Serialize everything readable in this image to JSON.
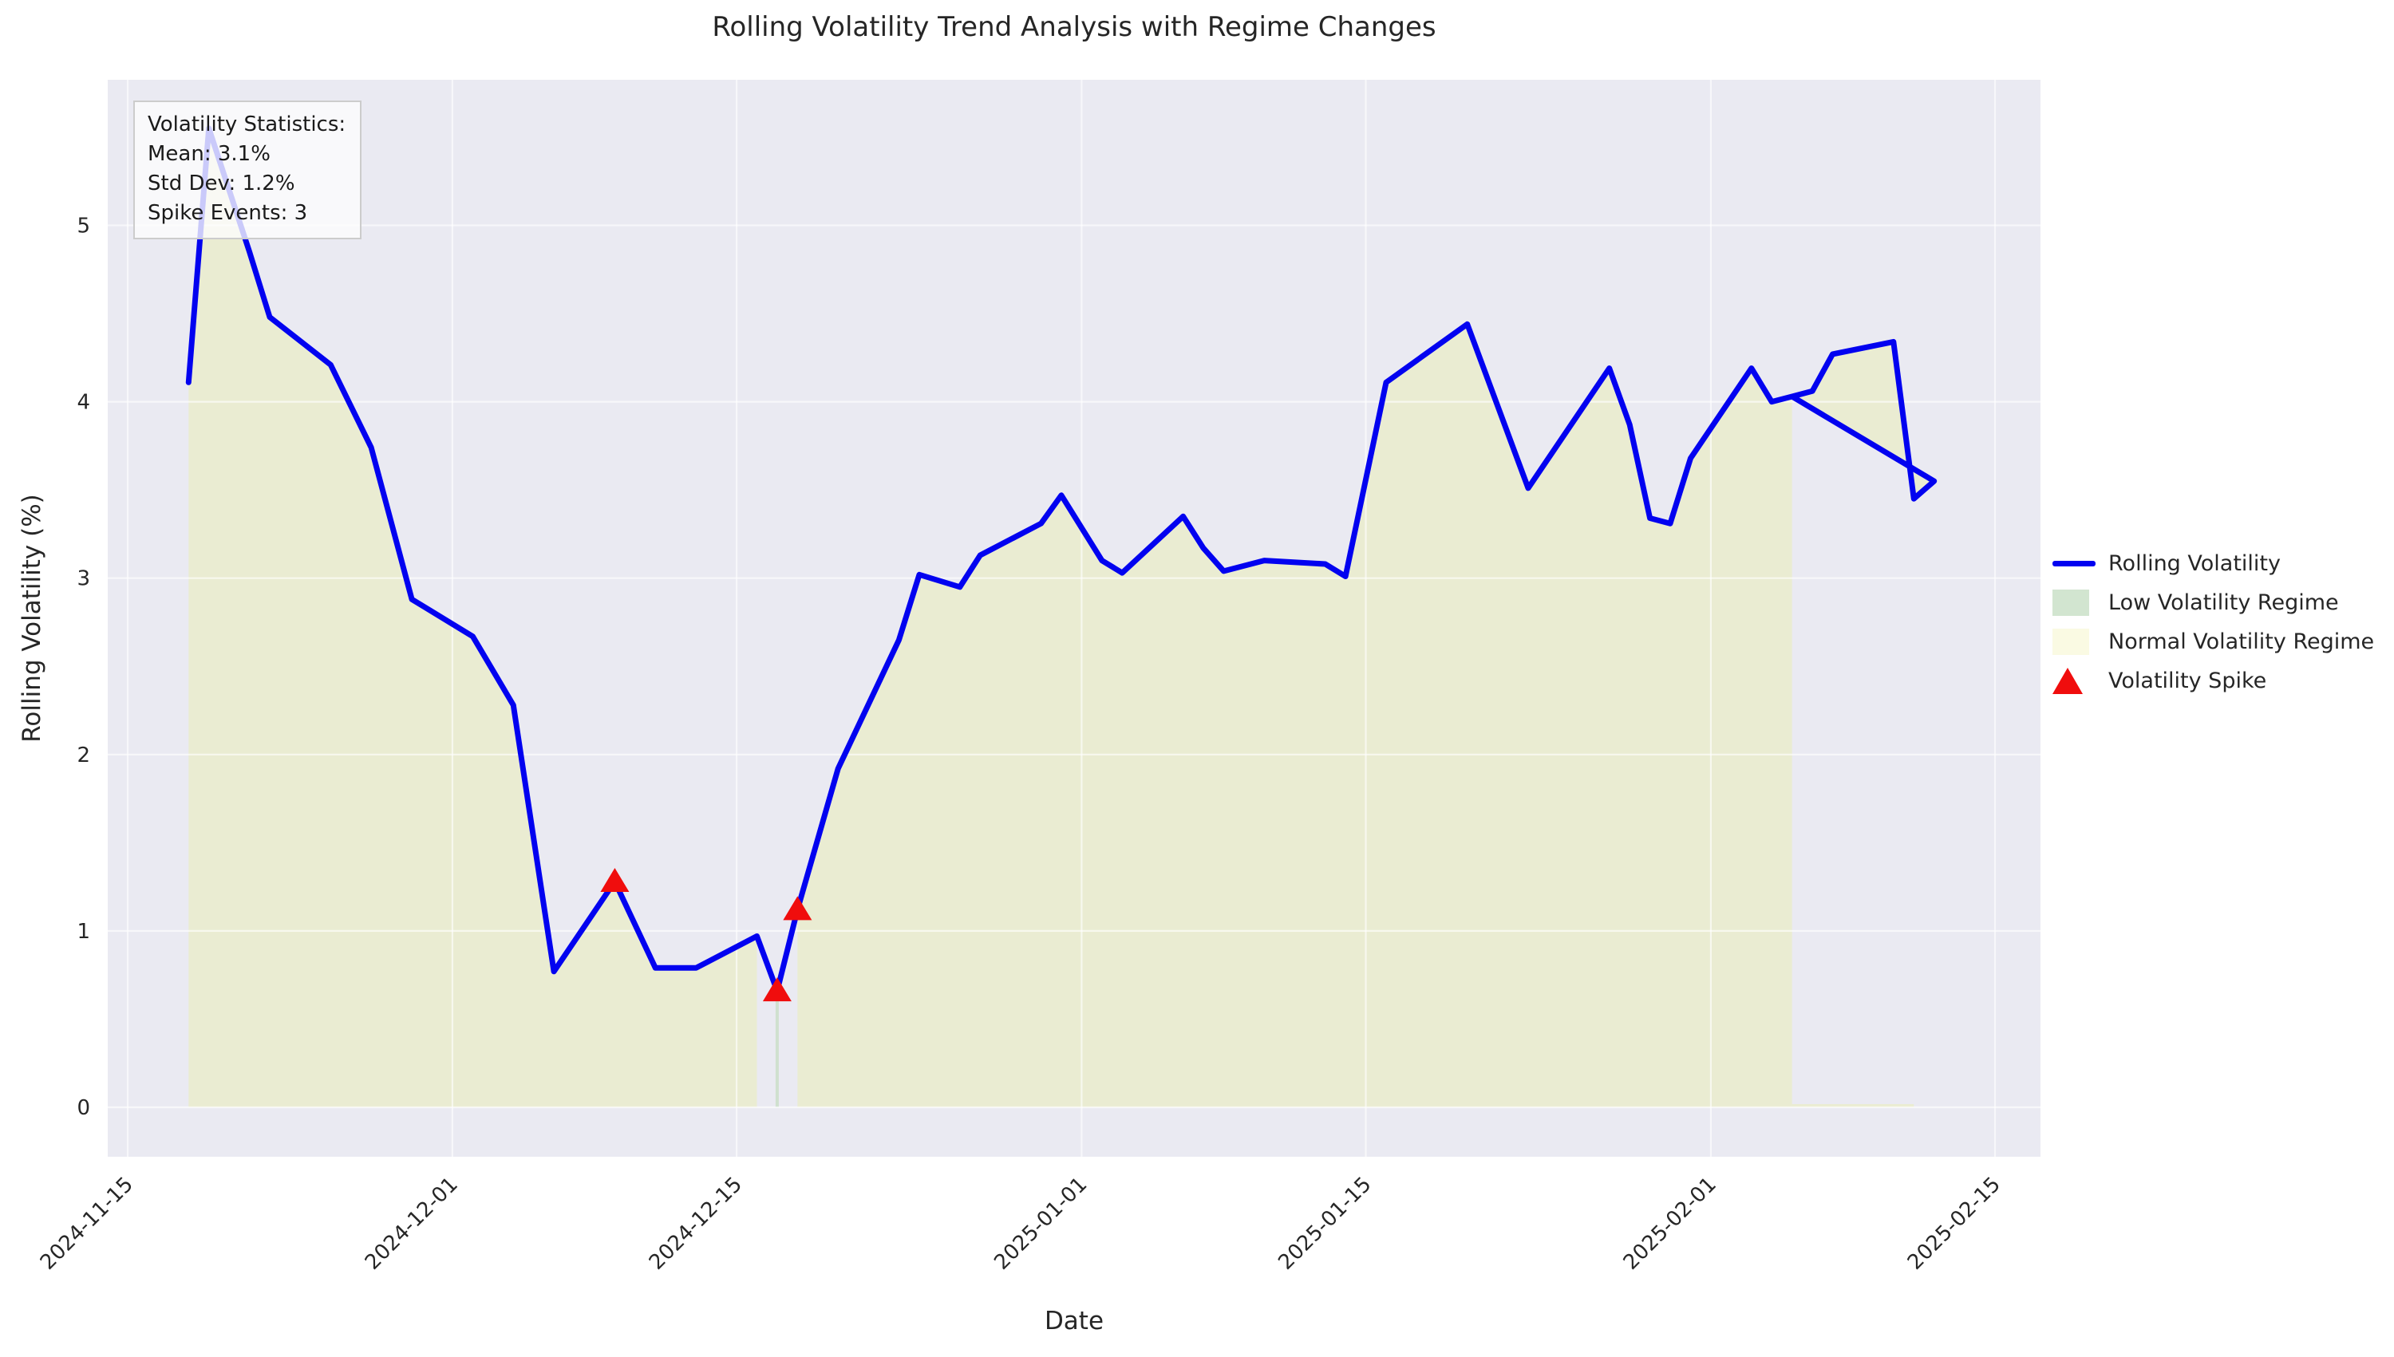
{
  "title": "Rolling Volatility Trend Analysis with Regime Changes",
  "stats_box": {
    "heading": "Volatility Statistics:",
    "mean": "Mean: 3.1%",
    "std_dev": "Std Dev: 1.2%",
    "spike_events": "Spike Events: 3"
  },
  "legend": [
    "Rolling Volatility",
    "Low Volatility Regime",
    "Normal Volatility Regime",
    "Volatility Spike"
  ],
  "colors": {
    "line": "#0202f0",
    "plot_background": "#eaeaf2",
    "grid": "#ffffff",
    "normal_regime_fill": "#eaecd2",
    "low_regime_fill": "#cfe0cf",
    "spike_marker": "#f00d0d",
    "text": "#262626"
  },
  "chart_data": {
    "type": "line",
    "title": "Rolling Volatility Trend Analysis with Regime Changes",
    "xlabel": "Date",
    "ylabel": "Rolling Volatility (%)",
    "x_ticks": [
      "2024-11-15",
      "2024-12-01",
      "2024-12-15",
      "2025-01-01",
      "2025-01-15",
      "2025-02-01",
      "2025-02-15"
    ],
    "y_ticks": [
      "0",
      "1",
      "2",
      "3",
      "4",
      "5"
    ],
    "ylim": [
      -0.28,
      5.88
    ],
    "grid": true,
    "legend_position": "outside-right",
    "series": [
      {
        "name": "Rolling Volatility",
        "points": [
          [
            "2024-11-18",
            4.11
          ],
          [
            "2024-11-19",
            5.55
          ],
          [
            "2024-11-21",
            4.85
          ],
          [
            "2024-11-22",
            4.48
          ],
          [
            "2024-11-25",
            4.21
          ],
          [
            "2024-11-27",
            3.74
          ],
          [
            "2024-11-29",
            2.88
          ],
          [
            "2024-12-02",
            2.67
          ],
          [
            "2024-12-04",
            2.28
          ],
          [
            "2024-12-06",
            0.77
          ],
          [
            "2024-12-09",
            1.28
          ],
          [
            "2024-12-11",
            0.79
          ],
          [
            "2024-12-13",
            0.79
          ],
          [
            "2024-12-16",
            0.97
          ],
          [
            "2024-12-17",
            0.66
          ],
          [
            "2024-12-18",
            1.12
          ],
          [
            "2024-12-20",
            1.92
          ],
          [
            "2024-12-23",
            2.65
          ],
          [
            "2024-12-24",
            3.02
          ],
          [
            "2024-12-26",
            2.95
          ],
          [
            "2024-12-27",
            3.13
          ],
          [
            "2024-12-30",
            3.31
          ],
          [
            "2024-12-31",
            3.47
          ],
          [
            "2025-01-02",
            3.1
          ],
          [
            "2025-01-03",
            3.03
          ],
          [
            "2025-01-06",
            3.35
          ],
          [
            "2025-01-07",
            3.17
          ],
          [
            "2025-01-08",
            3.04
          ],
          [
            "2025-01-10",
            3.1
          ],
          [
            "2025-01-13",
            3.08
          ],
          [
            "2025-01-14",
            3.01
          ],
          [
            "2025-01-16",
            4.11
          ],
          [
            "2025-01-20",
            4.44
          ],
          [
            "2025-01-23",
            3.51
          ],
          [
            "2025-01-27",
            4.19
          ],
          [
            "2025-01-28",
            3.87
          ],
          [
            "2025-01-29",
            3.34
          ],
          [
            "2025-01-30",
            3.31
          ],
          [
            "2025-01-31",
            3.68
          ],
          [
            "2025-02-03",
            4.19
          ],
          [
            "2025-02-04",
            4.0
          ],
          [
            "2025-02-05",
            4.03
          ],
          [
            "2025-02-06",
            4.06
          ],
          [
            "2025-02-07",
            4.27
          ],
          [
            "2025-02-10",
            4.34
          ],
          [
            "2025-02-11",
            3.45
          ],
          [
            "2025-02-12",
            3.55
          ],
          [
            "2025-02-05",
            4.03
          ]
        ]
      }
    ],
    "spike_events": {
      "name": "Volatility Spike",
      "points": [
        [
          "2024-12-09",
          1.28
        ],
        [
          "2024-12-17",
          0.66
        ],
        [
          "2024-12-18",
          1.12
        ]
      ]
    },
    "regimes": {
      "normal": {
        "name": "Normal Volatility Regime",
        "ranges": [
          {
            "start": "2024-11-18",
            "end": "2024-12-16"
          },
          {
            "start": "2024-12-18",
            "end": "2025-02-05"
          }
        ],
        "baseline_strip": {
          "start": "2025-02-05",
          "end": "2025-02-11"
        }
      },
      "low": {
        "name": "Low Volatility Regime",
        "events": [
          {
            "date": "2024-12-17",
            "value": 0.66
          }
        ]
      }
    }
  }
}
